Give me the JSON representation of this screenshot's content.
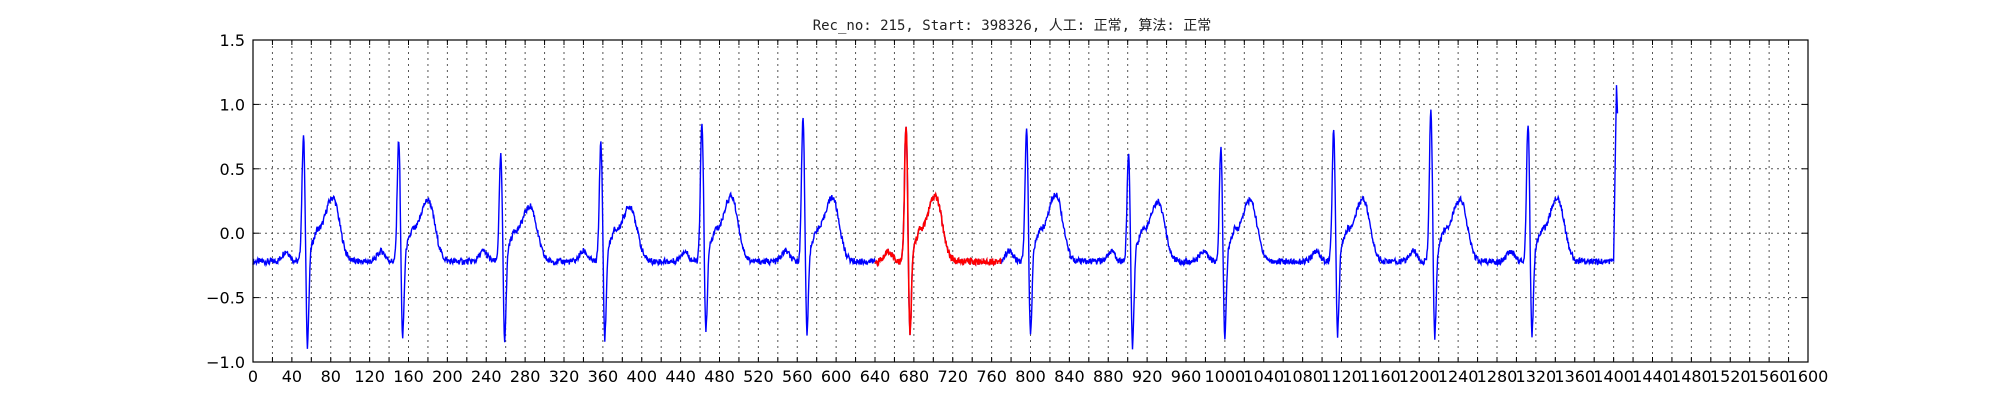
{
  "chart_data": {
    "type": "line",
    "title": "Rec_no: 215, Start: 398326, 人工: 正常, 算法: 正常",
    "xlabel": "",
    "ylabel": "",
    "xlim": [
      0,
      1600
    ],
    "ylim": [
      -1.0,
      1.5
    ],
    "yticks": [
      1.5,
      1.0,
      0.5,
      0.0,
      -0.5,
      -1.0
    ],
    "ytick_labels": [
      "1.5",
      "1.0",
      "0.5",
      "0.0",
      "−0.5",
      "−1.0"
    ],
    "xticks_step": 20,
    "xtick_labels": [
      "0",
      "40",
      "80",
      "120",
      "160",
      "200",
      "240",
      "280",
      "320",
      "360",
      "400",
      "440",
      "480",
      "520",
      "560",
      "600",
      "640",
      "680",
      "720",
      "760",
      "800",
      "840",
      "880",
      "920",
      "960",
      "1000",
      "1040",
      "1080",
      "1120",
      "1160",
      "1200",
      "1240",
      "1280",
      "1320",
      "1360",
      "1400",
      "1440",
      "1480",
      "1520",
      "1560",
      "1600"
    ],
    "grid": true,
    "legend": "none",
    "series": [
      {
        "color": "#0000ff",
        "x_range": [
          0,
          1400
        ],
        "r_peaks": [
          52,
          150,
          255,
          358,
          462,
          566,
          672,
          796,
          901,
          996,
          1112,
          1212,
          1312
        ],
        "r_amplitudes": [
          0.78,
          0.74,
          0.62,
          0.73,
          0.87,
          0.92,
          0.86,
          0.83,
          0.63,
          0.68,
          0.81,
          0.96,
          0.87
        ],
        "s_amplitudes": [
          -0.92,
          -0.87,
          -0.87,
          -0.87,
          -0.82,
          -0.84,
          -0.84,
          -0.85,
          -0.93,
          -0.88,
          -0.85,
          -0.88,
          -0.86
        ],
        "t_amplitudes": [
          0.28,
          0.26,
          0.21,
          0.21,
          0.29,
          0.28,
          0.29,
          0.31,
          0.25,
          0.26,
          0.27,
          0.27,
          0.28
        ],
        "baseline": -0.22,
        "final_upstroke_to": 1.15
      },
      {
        "color": "#ff0000",
        "x_range": [
          640,
          770
        ],
        "r_peaks": [
          672
        ],
        "r_amplitudes": [
          0.86
        ],
        "s_amplitudes": [
          -0.84
        ],
        "t_amplitudes": [
          0.29
        ]
      }
    ]
  }
}
